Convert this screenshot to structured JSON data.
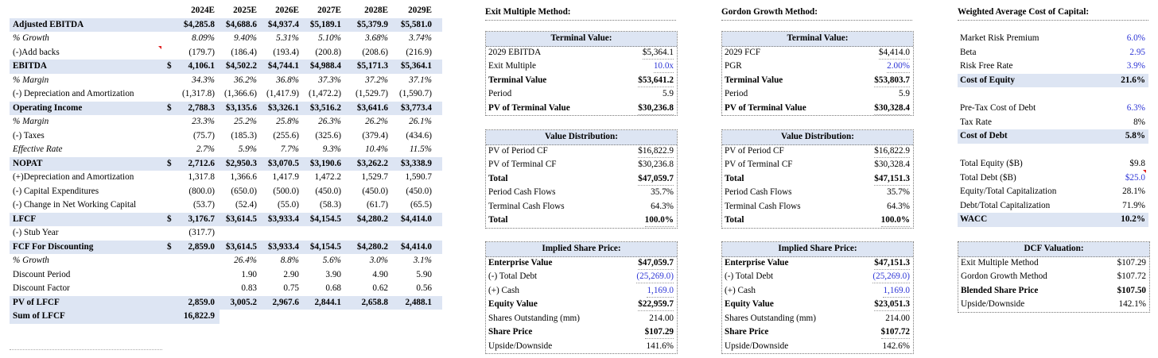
{
  "left_table": {
    "years": [
      "2024E",
      "2025E",
      "2026E",
      "2027E",
      "2028E",
      "2029E"
    ],
    "rows": [
      {
        "label": "Adjusted EBITDA",
        "style": "b hl",
        "dollar": false,
        "values": [
          "$4,285.8",
          "$4,688.6",
          "$4,937.4",
          "$5,189.1",
          "$5,379.9",
          "$5,581.0"
        ]
      },
      {
        "label": "% Growth",
        "style": "i",
        "dollar": false,
        "values": [
          "8.09%",
          "9.40%",
          "5.31%",
          "5.10%",
          "3.68%",
          "3.74%"
        ]
      },
      {
        "label": "(-)Add backs",
        "style": "",
        "dollar": false,
        "values": [
          "(179.7)",
          "(186.4)",
          "(193.4)",
          "(200.8)",
          "(208.6)",
          "(216.9)"
        ]
      },
      {
        "label": "EBITDA",
        "style": "b hl",
        "dollar": true,
        "values": [
          "4,106.1",
          "$4,502.2",
          "$4,744.1",
          "$4,988.4",
          "$5,171.3",
          "$5,364.1"
        ]
      },
      {
        "label": "% Margin",
        "style": "i",
        "dollar": false,
        "values": [
          "34.3%",
          "36.2%",
          "36.8%",
          "37.3%",
          "37.2%",
          "37.1%"
        ]
      },
      {
        "label": "(-) Depreciation and Amortization",
        "style": "",
        "dollar": false,
        "values": [
          "(1,317.8)",
          "(1,366.6)",
          "(1,417.9)",
          "(1,472.2)",
          "(1,529.7)",
          "(1,590.7)"
        ]
      },
      {
        "label": "Operating Income",
        "style": "b hl",
        "dollar": true,
        "values": [
          "2,788.3",
          "$3,135.6",
          "$3,326.1",
          "$3,516.2",
          "$3,641.6",
          "$3,773.4"
        ]
      },
      {
        "label": "% Margin",
        "style": "i",
        "dollar": false,
        "values": [
          "23.3%",
          "25.2%",
          "25.8%",
          "26.3%",
          "26.2%",
          "26.1%"
        ]
      },
      {
        "label": "(-) Taxes",
        "style": "",
        "dollar": false,
        "values": [
          "(75.7)",
          "(185.3)",
          "(255.6)",
          "(325.6)",
          "(379.4)",
          "(434.6)"
        ]
      },
      {
        "label": "Effective Rate",
        "style": "i",
        "dollar": false,
        "values": [
          "2.7%",
          "5.9%",
          "7.7%",
          "9.3%",
          "10.4%",
          "11.5%"
        ]
      },
      {
        "label": "NOPAT",
        "style": "b hl",
        "dollar": true,
        "values": [
          "2,712.6",
          "$2,950.3",
          "$3,070.5",
          "$3,190.6",
          "$3,262.2",
          "$3,338.9"
        ]
      },
      {
        "label": "(+)Depreciation and Amortization",
        "style": "",
        "dollar": false,
        "values": [
          "1,317.8",
          "1,366.6",
          "1,417.9",
          "1,472.2",
          "1,529.7",
          "1,590.7"
        ]
      },
      {
        "label": "(-) Capital Expenditures",
        "style": "",
        "dollar": false,
        "values": [
          "(800.0)",
          "(650.0)",
          "(500.0)",
          "(450.0)",
          "(450.0)",
          "(450.0)"
        ]
      },
      {
        "label": "(-) Change in Net Working Capital",
        "style": "",
        "dollar": false,
        "values": [
          "(53.7)",
          "(52.4)",
          "(55.0)",
          "(58.3)",
          "(61.7)",
          "(65.5)"
        ]
      },
      {
        "label": "LFCF",
        "style": "b hl",
        "dollar": true,
        "values": [
          "3,176.7",
          "$3,614.5",
          "$3,933.4",
          "$4,154.5",
          "$4,280.2",
          "$4,414.0"
        ]
      },
      {
        "label": "(-) Stub Year",
        "style": "",
        "dollar": false,
        "values": [
          "(317.7)",
          "",
          "",
          "",
          "",
          ""
        ]
      },
      {
        "label": "FCF For Discounting",
        "style": "b hl",
        "dollar": true,
        "values": [
          "2,859.0",
          "$3,614.5",
          "$3,933.4",
          "$4,154.5",
          "$4,280.2",
          "$4,414.0"
        ]
      },
      {
        "label": "% Growth",
        "style": "i",
        "dollar": false,
        "values": [
          "",
          "26.4%",
          "8.8%",
          "5.6%",
          "3.0%",
          "3.1%"
        ]
      },
      {
        "label": "Discount Period",
        "style": "",
        "dollar": false,
        "values": [
          "",
          "1.90",
          "2.90",
          "3.90",
          "4.90",
          "5.90"
        ]
      },
      {
        "label": "Discount Factor",
        "style": "",
        "dollar": false,
        "values": [
          "",
          "0.83",
          "0.75",
          "0.68",
          "0.62",
          "0.56"
        ]
      },
      {
        "label": "PV of LFCF",
        "style": "b hl",
        "dollar": false,
        "values": [
          "2,859.0",
          "3,005.2",
          "2,967.6",
          "2,844.1",
          "2,658.8",
          "2,488.1"
        ]
      },
      {
        "label": "Sum of LFCF",
        "style": "b hl",
        "dollar": false,
        "values": [
          "16,822.9",
          "",
          "",
          "",
          "",
          ""
        ]
      }
    ],
    "dollar_sign": "$"
  },
  "exit": {
    "title": "Exit Multiple Method:",
    "tv_title": "Terminal Value:",
    "tv_rows": [
      {
        "l": "2029 EBITDA",
        "r": "$5,364.1",
        "b": false,
        "blue": false
      },
      {
        "l": "Exit Multiple",
        "r": "10.0x",
        "b": false,
        "blue": true
      },
      {
        "l": "Terminal Value",
        "r": "$53,641.2",
        "b": true,
        "blue": false
      },
      {
        "l": "Period",
        "r": "5.9",
        "b": false,
        "blue": false
      },
      {
        "l": "PV of Terminal Value",
        "r": "$30,236.8",
        "b": true,
        "blue": false
      }
    ],
    "vd_title": "Value Distribution:",
    "vd_rows": [
      {
        "l": "PV of Period CF",
        "r": "$16,822.9",
        "b": false
      },
      {
        "l": "PV of Terminal CF",
        "r": "$30,236.8",
        "b": false
      },
      {
        "l": "Total",
        "r": "$47,059.7",
        "b": true
      },
      {
        "l": "Period Cash Flows",
        "r": "35.7%",
        "b": false
      },
      {
        "l": "Terminal Cash Flows",
        "r": "64.3%",
        "b": false
      },
      {
        "l": "Total",
        "r": "100.0%",
        "b": true
      }
    ],
    "sp_title": "Implied Share Price:",
    "sp_rows": [
      {
        "l": "Enterprise Value",
        "r": "$47,059.7",
        "b": true,
        "blue": false
      },
      {
        "l": "(-) Total Debt",
        "r": "(25,269.0)",
        "b": false,
        "blue": true
      },
      {
        "l": "(+) Cash",
        "r": "1,169.0",
        "b": false,
        "blue": true
      },
      {
        "l": "Equity Value",
        "r": "$22,959.7",
        "b": true,
        "blue": false
      },
      {
        "l": "Shares Outstanding (mm)",
        "r": "214.00",
        "b": false,
        "blue": false
      },
      {
        "l": "Share Price",
        "r": "$107.29",
        "b": true,
        "blue": false
      },
      {
        "l": "Upside/Downside",
        "r": "141.6%",
        "b": false,
        "blue": false
      }
    ]
  },
  "gordon": {
    "title": "Gordon Growth Method:",
    "tv_title": "Terminal Value:",
    "tv_rows": [
      {
        "l": "2029 FCF",
        "r": "$4,414.0",
        "b": false,
        "blue": false
      },
      {
        "l": "PGR",
        "r": "2.00%",
        "b": false,
        "blue": true
      },
      {
        "l": "Terminal Value",
        "r": "$53,803.7",
        "b": true,
        "blue": false
      },
      {
        "l": "Period",
        "r": "5.9",
        "b": false,
        "blue": false
      },
      {
        "l": "PV of Terminal Value",
        "r": "$30,328.4",
        "b": true,
        "blue": false
      }
    ],
    "vd_title": "Value Distribution:",
    "vd_rows": [
      {
        "l": "PV of Period CF",
        "r": "$16,822.9",
        "b": false
      },
      {
        "l": "PV of Terminal CF",
        "r": "$30,328.4",
        "b": false
      },
      {
        "l": "Total",
        "r": "$47,151.3",
        "b": true
      },
      {
        "l": "Period Cash Flows",
        "r": "35.7%",
        "b": false
      },
      {
        "l": "Terminal Cash Flows",
        "r": "64.3%",
        "b": false
      },
      {
        "l": "Total",
        "r": "100.0%",
        "b": true
      }
    ],
    "sp_title": "Implied Share Price:",
    "sp_rows": [
      {
        "l": "Enterprise Value",
        "r": "$47,151.3",
        "b": true,
        "blue": false
      },
      {
        "l": "(-) Total Debt",
        "r": "(25,269.0)",
        "b": false,
        "blue": true
      },
      {
        "l": "(+) Cash",
        "r": "1,169.0",
        "b": false,
        "blue": true
      },
      {
        "l": "Equity Value",
        "r": "$23,051.3",
        "b": true,
        "blue": false
      },
      {
        "l": "Shares Outstanding (mm)",
        "r": "214.00",
        "b": false,
        "blue": false
      },
      {
        "l": "Share Price",
        "r": "$107.72",
        "b": true,
        "blue": false
      },
      {
        "l": "Upside/Downside",
        "r": "142.6%",
        "b": false,
        "blue": false
      }
    ]
  },
  "wacc": {
    "title": "Weighted Average Cost of Capital:",
    "groups": [
      [
        {
          "l": "Market Risk Premium",
          "r": "6.0%",
          "b": false,
          "blue": true,
          "hl": false
        },
        {
          "l": "Beta",
          "r": "2.95",
          "b": false,
          "blue": true,
          "hl": false
        },
        {
          "l": "Risk Free Rate",
          "r": "3.9%",
          "b": false,
          "blue": true,
          "hl": false
        },
        {
          "l": "Cost of Equity",
          "r": "21.6%",
          "b": true,
          "blue": false,
          "hl": true
        }
      ],
      [
        {
          "l": "Pre-Tax Cost of Debt",
          "r": "6.3%",
          "b": false,
          "blue": true,
          "hl": false
        },
        {
          "l": "Tax Rate",
          "r": "8%",
          "b": false,
          "blue": false,
          "hl": false
        },
        {
          "l": "Cost of Debt",
          "r": "5.8%",
          "b": true,
          "blue": false,
          "hl": true
        }
      ],
      [
        {
          "l": "Total Equity ($B)",
          "r": "$9.8",
          "b": false,
          "blue": false,
          "hl": false
        },
        {
          "l": "Total Debt ($B)",
          "r": "$25.0",
          "b": false,
          "blue": true,
          "hl": false
        },
        {
          "l": "Equity/Total Capitalization",
          "r": "28.1%",
          "b": false,
          "blue": false,
          "hl": false
        },
        {
          "l": "Debt/Total Capitalization",
          "r": "71.9%",
          "b": false,
          "blue": false,
          "hl": false
        },
        {
          "l": "WACC",
          "r": "10.2%",
          "b": true,
          "blue": false,
          "hl": true
        }
      ]
    ],
    "dcf_title": "DCF Valuation:",
    "dcf_rows": [
      {
        "l": "Exit Multiple Method",
        "r": "$107.29",
        "b": false
      },
      {
        "l": "Gordon Growth Method",
        "r": "$107.72",
        "b": false
      },
      {
        "l": "Blended Share Price",
        "r": "$107.50",
        "b": true
      },
      {
        "l": "Upside/Downside",
        "r": "142.1%",
        "b": false
      }
    ]
  }
}
